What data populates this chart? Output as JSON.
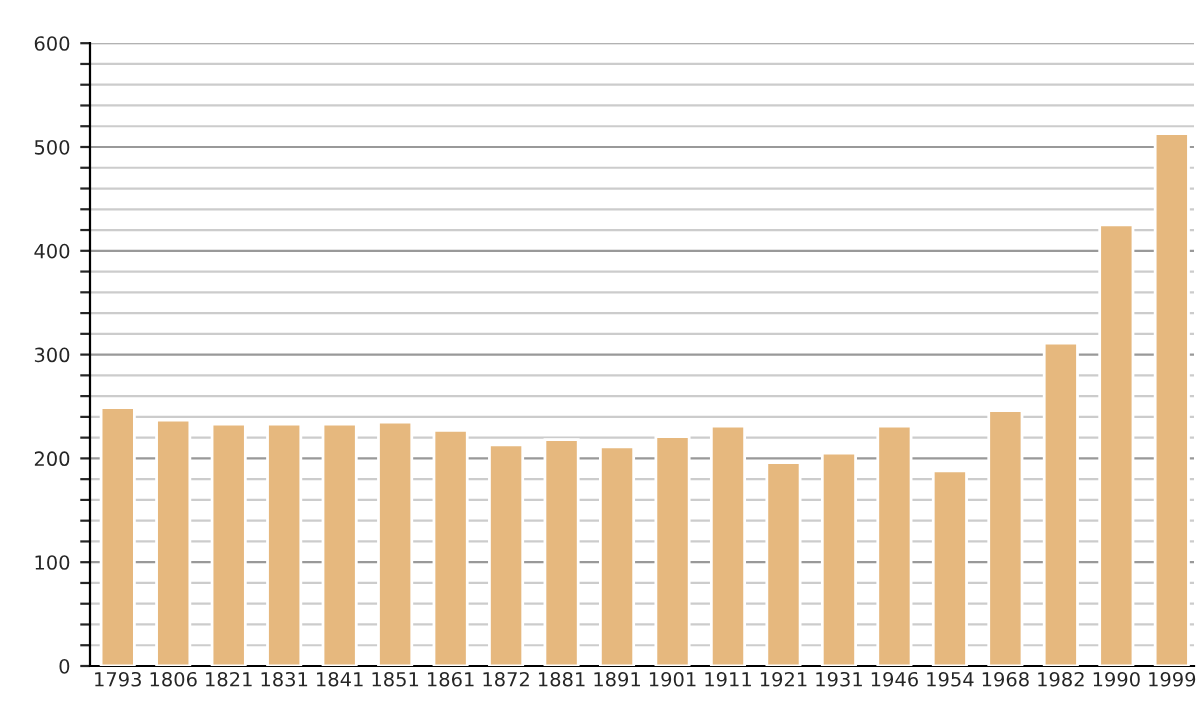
{
  "chart_data": {
    "type": "bar",
    "categories": [
      "1793",
      "1806",
      "1821",
      "1831",
      "1841",
      "1851",
      "1861",
      "1872",
      "1881",
      "1891",
      "1901",
      "1911",
      "1921",
      "1931",
      "1946",
      "1954",
      "1968",
      "1982",
      "1990",
      "1999"
    ],
    "values": [
      249,
      237,
      233,
      233,
      233,
      235,
      227,
      213,
      218,
      211,
      221,
      231,
      196,
      205,
      231,
      188,
      246,
      311,
      425,
      513
    ],
    "color": "#e6b87e",
    "ylim": [
      0,
      600
    ],
    "yticks": [
      0,
      {
        "value": 20,
        "label": null
      },
      {
        "value": 40,
        "label": null
      },
      {
        "value": 60,
        "label": null
      },
      {
        "value": 80,
        "label": null
      },
      100,
      {
        "value": 120,
        "label": null
      },
      {
        "value": 140,
        "label": null
      },
      {
        "value": 160,
        "label": null
      },
      {
        "value": 180,
        "label": null
      },
      200,
      {
        "value": 220,
        "label": null
      },
      {
        "value": 240,
        "label": null
      },
      {
        "value": 260,
        "label": null
      },
      {
        "value": 280,
        "label": null
      },
      300,
      {
        "value": 320,
        "label": null
      },
      {
        "value": 340,
        "label": null
      },
      {
        "value": 360,
        "label": null
      },
      {
        "value": 380,
        "label": null
      },
      400,
      {
        "value": 420,
        "label": null
      },
      {
        "value": 440,
        "label": null
      },
      {
        "value": 460,
        "label": null
      },
      {
        "value": 480,
        "label": null
      },
      500,
      {
        "value": 520,
        "label": null
      },
      {
        "value": 540,
        "label": null
      },
      {
        "value": 560,
        "label": null
      },
      {
        "value": 580,
        "label": null
      },
      600
    ],
    "grid": "y"
  }
}
